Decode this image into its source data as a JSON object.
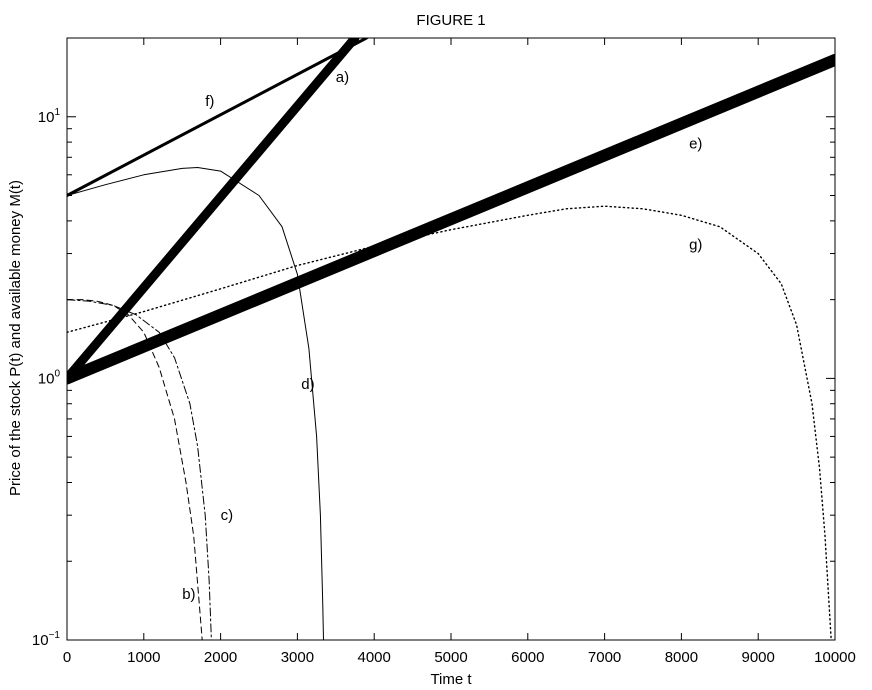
{
  "chart_data": {
    "type": "line",
    "title": "FIGURE 1",
    "xlabel": "Time t",
    "ylabel": "Price of the stock P(t) and available money M(t)",
    "xlim": [
      0,
      10000
    ],
    "ylim": [
      0.1,
      20
    ],
    "yscale": "log",
    "grid": false,
    "x_ticks": [
      0,
      1000,
      2000,
      3000,
      4000,
      5000,
      6000,
      7000,
      8000,
      9000,
      10000
    ],
    "y_ticks": [
      {
        "value": 1,
        "base": "10",
        "exp": "0"
      },
      {
        "value": 10,
        "base": "10",
        "exp": "1"
      },
      {
        "value": 0.1,
        "base": "10",
        "exp": "−1"
      }
    ],
    "series": [
      {
        "name": "a)",
        "label_at": [
          3500,
          14.2
        ],
        "style": "solid",
        "width": 9,
        "color": "#000000",
        "x": [
          0,
          3750
        ],
        "y": [
          1,
          20
        ]
      },
      {
        "name": "b)",
        "label_at": [
          1500,
          0.15
        ],
        "style": "dashed",
        "width": 1,
        "color": "#000000",
        "x": [
          0,
          200,
          400,
          600,
          800,
          1000,
          1200,
          1400,
          1550,
          1650,
          1720,
          1760
        ],
        "y": [
          2.0,
          2.0,
          1.97,
          1.9,
          1.75,
          1.5,
          1.1,
          0.7,
          0.4,
          0.25,
          0.14,
          0.1
        ]
      },
      {
        "name": "c)",
        "label_at": [
          2000,
          0.3
        ],
        "style": "dashdot",
        "width": 1,
        "color": "#000000",
        "x": [
          0,
          300,
          600,
          900,
          1200,
          1400,
          1600,
          1700,
          1800,
          1850,
          1880
        ],
        "y": [
          2.0,
          1.97,
          1.9,
          1.75,
          1.5,
          1.2,
          0.8,
          0.55,
          0.3,
          0.17,
          0.1
        ]
      },
      {
        "name": "d)",
        "label_at": [
          3050,
          0.95
        ],
        "style": "solid",
        "width": 1,
        "color": "#000000",
        "x": [
          0,
          500,
          1000,
          1500,
          1700,
          2000,
          2500,
          2800,
          3000,
          3150,
          3250,
          3300,
          3330,
          3340
        ],
        "y": [
          5.0,
          5.5,
          6.0,
          6.35,
          6.4,
          6.2,
          5.0,
          3.8,
          2.5,
          1.3,
          0.6,
          0.3,
          0.14,
          0.1
        ]
      },
      {
        "name": "e)",
        "label_at": [
          8100,
          7.9
        ],
        "style": "solid",
        "width": 12,
        "color": "#000000",
        "x": [
          0,
          10000
        ],
        "y": [
          1,
          16.5
        ]
      },
      {
        "name": "f)",
        "label_at": [
          1800,
          11.5
        ],
        "style": "solid",
        "width": 3,
        "color": "#000000",
        "x": [
          0,
          3900
        ],
        "y": [
          5,
          20
        ]
      },
      {
        "name": "g)",
        "label_at": [
          8100,
          3.25
        ],
        "style": "dotted",
        "width": 1.4,
        "color": "#000000",
        "x": [
          0,
          1000,
          2000,
          3000,
          4000,
          5000,
          6000,
          6500,
          7000,
          7500,
          8000,
          8500,
          9000,
          9300,
          9500,
          9700,
          9800,
          9870,
          9920,
          9950
        ],
        "y": [
          1.5,
          1.8,
          2.2,
          2.7,
          3.2,
          3.7,
          4.2,
          4.45,
          4.55,
          4.45,
          4.2,
          3.8,
          3.0,
          2.3,
          1.6,
          0.8,
          0.45,
          0.25,
          0.14,
          0.1
        ]
      }
    ]
  }
}
